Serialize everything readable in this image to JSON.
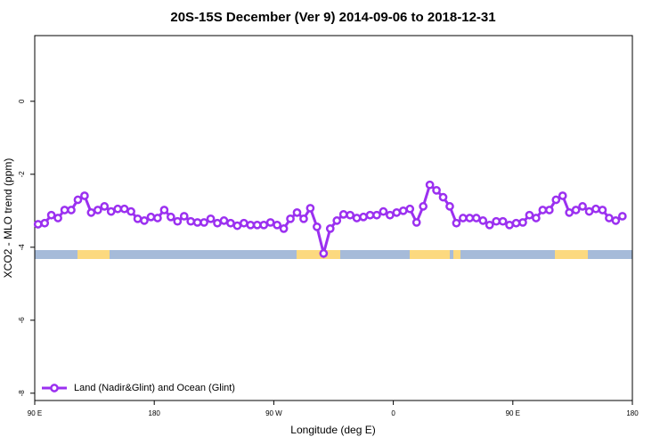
{
  "chart_data": {
    "type": "line",
    "title": "20S-15S December (Ver 9)   2014-09-06 to 2018-12-31",
    "x_label": "Longitude (deg E)",
    "y_label": "XCO2 - MLO trend (ppm)",
    "xlim": [
      90,
      540
    ],
    "ylim": [
      -8.2,
      1.8
    ],
    "xticks": [
      {
        "value": 90,
        "label": "90 E"
      },
      180,
      {
        "value": 270,
        "label": "90 W"
      },
      {
        "value": 360,
        "label": "0"
      },
      {
        "value": 450,
        "label": "90 E"
      },
      {
        "value": 540,
        "label": "180"
      }
    ],
    "yticks": [
      0,
      -2,
      -4,
      -6,
      -8
    ],
    "legend": "lower left",
    "grid": false,
    "x": [
      92.5,
      97.5,
      102.5,
      107.5,
      112.5,
      117.5,
      122.5,
      127.5,
      132.5,
      137.5,
      142.5,
      147.5,
      152.5,
      157.5,
      162.5,
      167.5,
      172.5,
      177.5,
      182.5,
      187.5,
      192.5,
      197.5,
      202.5,
      207.5,
      212.5,
      217.5,
      222.5,
      227.5,
      232.5,
      237.5,
      242.5,
      247.5,
      252.5,
      257.5,
      262.5,
      267.5,
      272.5,
      277.5,
      282.5,
      287.5,
      292.5,
      297.5,
      302.5,
      307.5,
      312.5,
      317.5,
      322.5,
      327.5,
      332.5,
      337.5,
      342.5,
      347.5,
      352.5,
      357.5,
      362.5,
      367.5,
      372.5,
      377.5,
      382.5,
      387.5,
      392.5,
      397.5,
      402.5,
      407.5,
      412.5,
      417.5,
      422.5,
      427.5,
      432.5,
      437.5,
      442.5,
      447.5,
      452.5,
      457.5,
      462.5,
      467.5,
      472.5,
      477.5,
      482.5,
      487.5,
      492.5,
      497.5,
      502.5,
      507.5,
      512.5,
      517.5,
      522.5,
      527.5,
      532.5
    ],
    "series": [
      {
        "name": "Land (Nadir&Glint) and Ocean (Glint)",
        "color": "#9b30f0",
        "values": [
          -3.37,
          -3.34,
          -3.12,
          -3.2,
          -2.98,
          -2.98,
          -2.7,
          -2.59,
          -3.05,
          -2.98,
          -2.88,
          -3.02,
          -2.95,
          -2.95,
          -3.02,
          -3.22,
          -3.27,
          -3.17,
          -3.2,
          -2.98,
          -3.17,
          -3.29,
          -3.15,
          -3.29,
          -3.32,
          -3.32,
          -3.22,
          -3.34,
          -3.27,
          -3.34,
          -3.41,
          -3.34,
          -3.39,
          -3.39,
          -3.39,
          -3.32,
          -3.39,
          -3.49,
          -3.22,
          -3.05,
          -3.22,
          -2.93,
          -3.44,
          -4.17,
          -3.49,
          -3.27,
          -3.1,
          -3.12,
          -3.2,
          -3.17,
          -3.12,
          -3.12,
          -3.02,
          -3.12,
          -3.05,
          -3.0,
          -2.95,
          -3.32,
          -2.88,
          -2.29,
          -2.44,
          -2.63,
          -2.88,
          -3.34,
          -3.2,
          -3.2,
          -3.2,
          -3.27,
          -3.39,
          -3.29,
          -3.29,
          -3.39,
          -3.34,
          -3.32,
          -3.12,
          -3.2,
          -2.98,
          -2.98,
          -2.7,
          -2.59,
          -3.05,
          -2.98,
          -2.88,
          -3.02,
          -2.95,
          -2.98,
          -3.2,
          -3.27,
          -3.15
        ]
      }
    ]
  }
}
